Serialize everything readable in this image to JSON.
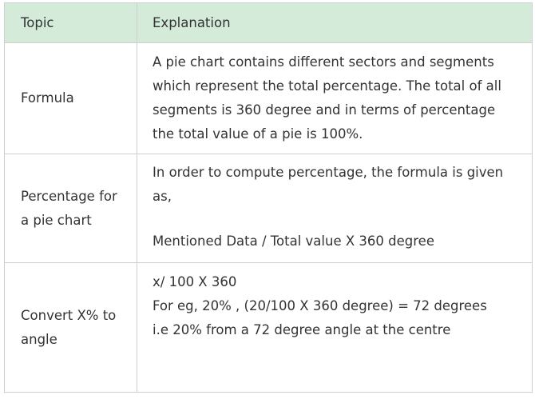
{
  "table": {
    "headers": {
      "topic": "Topic",
      "explanation": "Explanation"
    },
    "rows": [
      {
        "topic": "Formula",
        "explanation": "A pie chart contains different sectors and segments which represent the total percentage. The total of all segments is 360 degree and in terms of percentage the total value of a pie is 100%."
      },
      {
        "topic": "Percentage for a pie chart",
        "explanation_line1": "In order to compute percentage, the formula is given as,",
        "explanation_line2": "Mentioned Data / Total value X 360 degree"
      },
      {
        "topic": "Convert X% to angle",
        "explanation_line1": "x/ 100 X 360",
        "explanation_line2": "For eg, 20% , (20/100 X 360 degree) = 72 degrees",
        "explanation_line3": "i.e 20% from a 72 degree angle at the centre"
      }
    ]
  }
}
